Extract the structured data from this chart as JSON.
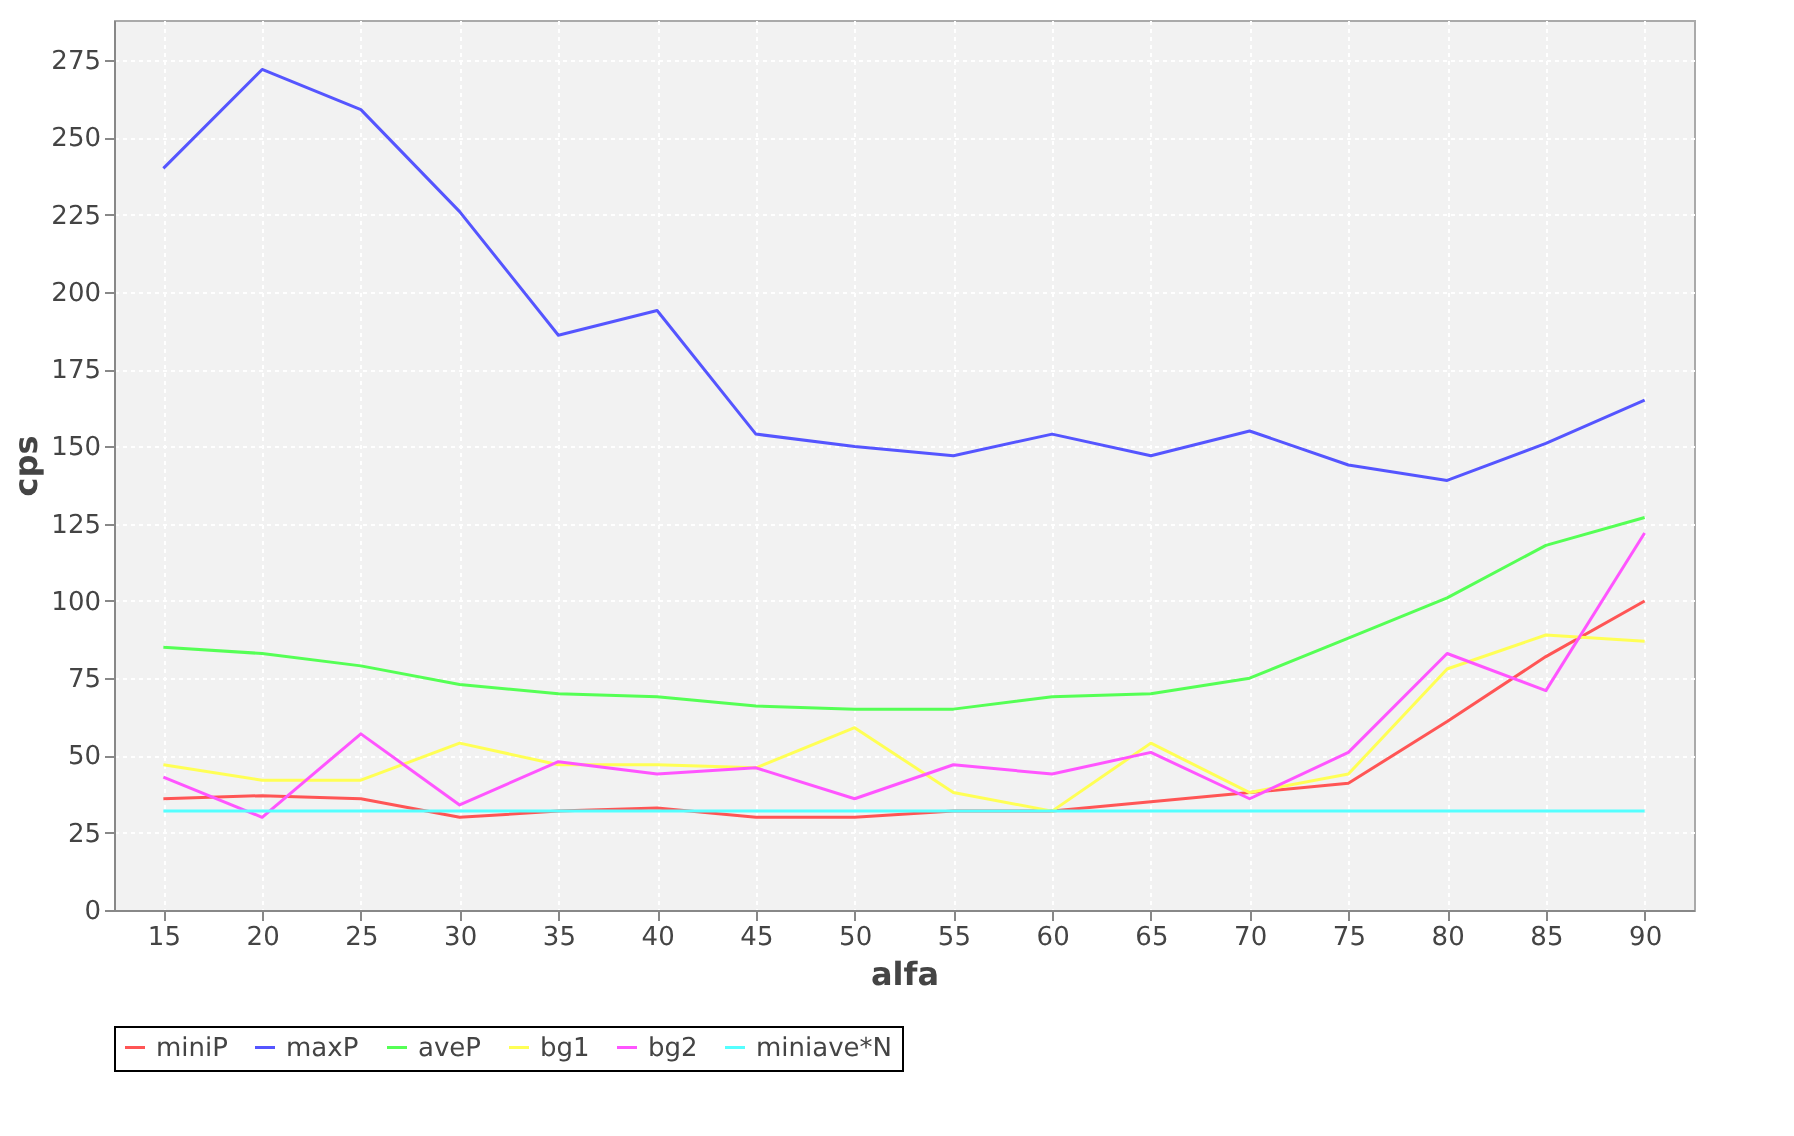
{
  "chart_data": {
    "type": "line",
    "xlabel": "alfa",
    "ylabel": "cps",
    "categories": [
      "15",
      "20",
      "25",
      "30",
      "35",
      "40",
      "45",
      "50",
      "55",
      "60",
      "65",
      "70",
      "75",
      "80",
      "85",
      "90"
    ],
    "series": [
      {
        "name": "miniP",
        "color": "#ff5555",
        "values": [
          36,
          37,
          36,
          30,
          32,
          33,
          30,
          30,
          32,
          32,
          35,
          38,
          41,
          61,
          82,
          100
        ]
      },
      {
        "name": "maxP",
        "color": "#5555ff",
        "values": [
          240,
          272,
          259,
          226,
          186,
          194,
          154,
          150,
          147,
          154,
          147,
          155,
          144,
          139,
          151,
          165
        ]
      },
      {
        "name": "aveP",
        "color": "#55ff55",
        "values": [
          85,
          83,
          79,
          73,
          70,
          69,
          66,
          65,
          65,
          69,
          70,
          75,
          88,
          101,
          118,
          127
        ]
      },
      {
        "name": "bg1",
        "color": "#ffff55",
        "values": [
          47,
          42,
          42,
          54,
          47,
          47,
          46,
          59,
          38,
          32,
          54,
          38,
          44,
          78,
          89,
          87
        ]
      },
      {
        "name": "bg2",
        "color": "#ff55ff",
        "values": [
          43,
          30,
          57,
          34,
          48,
          44,
          46,
          36,
          47,
          44,
          51,
          36,
          51,
          83,
          71,
          122
        ]
      },
      {
        "name": "miniave*N",
        "color": "#55ffff",
        "values": [
          32,
          32,
          32,
          32,
          32,
          32,
          32,
          32,
          32,
          32,
          32,
          32,
          32,
          32,
          32,
          32
        ]
      }
    ],
    "ylim": [
      0,
      288
    ],
    "yticks": [
      0,
      25,
      50,
      75,
      100,
      125,
      150,
      175,
      200,
      225,
      250,
      275
    ],
    "grid": true,
    "legend": "bottom",
    "marker": "none",
    "line_style": "solid"
  }
}
